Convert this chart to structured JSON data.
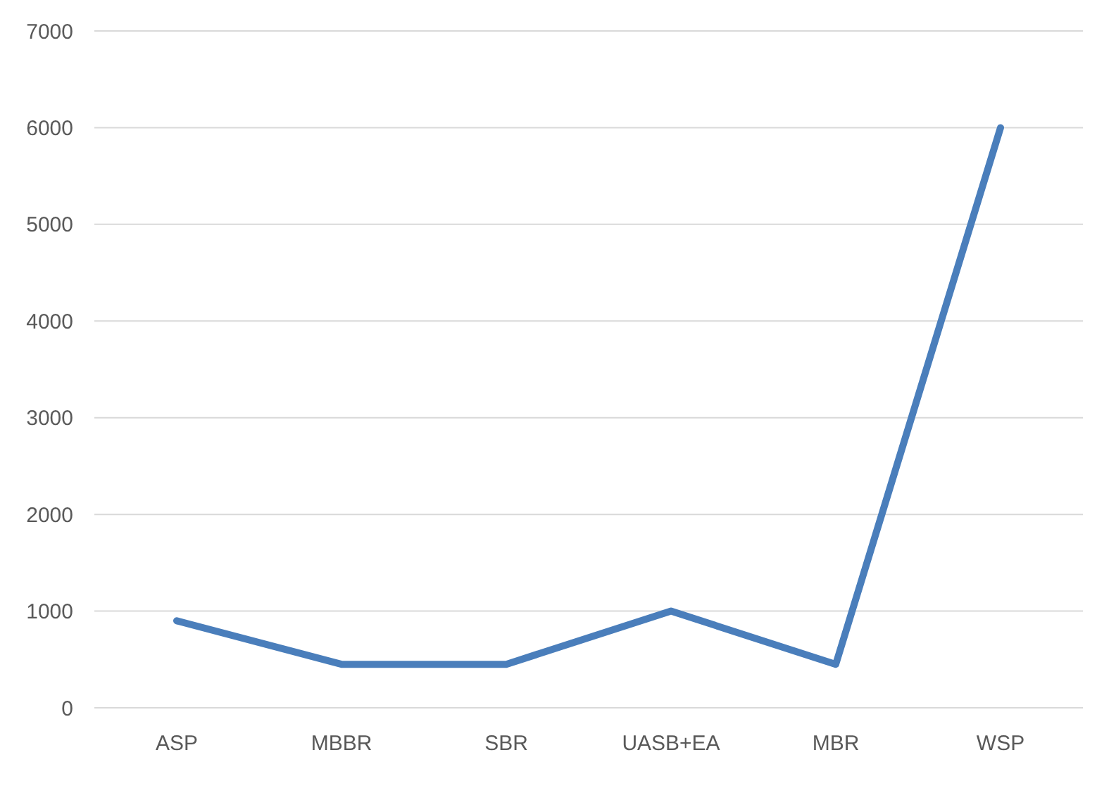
{
  "chart_data": {
    "type": "line",
    "categories": [
      "ASP",
      "MBBR",
      "SBR",
      "UASB+EA",
      "MBR",
      "WSP"
    ],
    "series": [
      {
        "color": "#4a7ebb",
        "values": [
          900,
          450,
          450,
          1000,
          450,
          6000
        ]
      }
    ],
    "ylim": [
      0,
      7000
    ],
    "yticks": [
      0,
      1000,
      2000,
      3000,
      4000,
      5000,
      6000,
      7000
    ],
    "grid": "y",
    "marker": "none",
    "line_style": "solid"
  }
}
